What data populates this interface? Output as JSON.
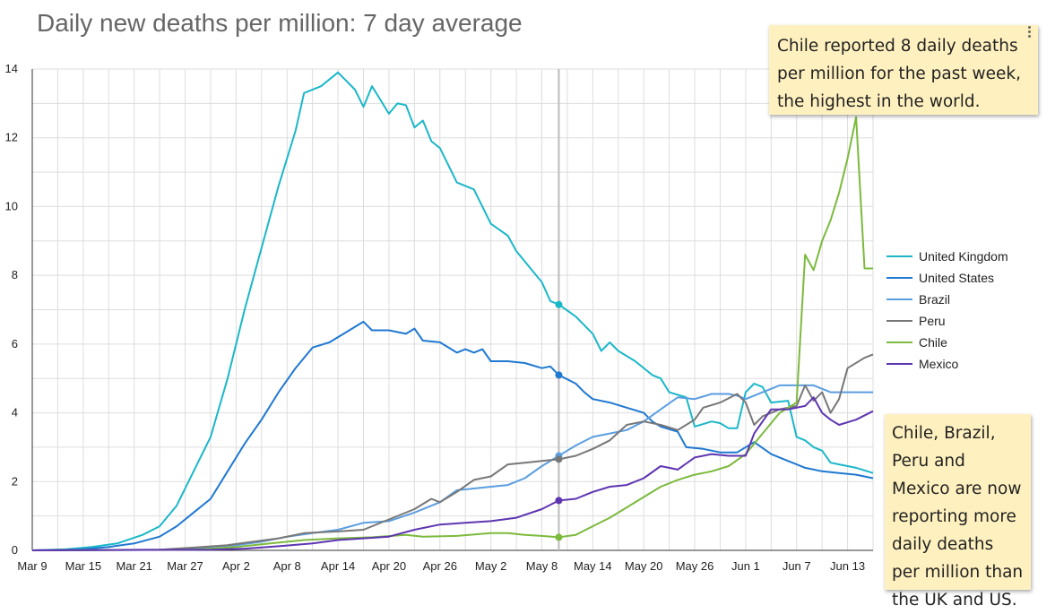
{
  "title": "Daily new deaths per million: 7 day average",
  "notes": {
    "top": "Chile reported 8 daily deaths per million for the past week, the highest in the world.",
    "bottom": "Chile, Brazil, Peru and Mexico are now reporting more daily deaths per million than the UK and US."
  },
  "chart_data": {
    "type": "line",
    "title": "Daily new deaths per million: 7 day average",
    "xlabel": "",
    "ylabel": "",
    "ylim": [
      0,
      14
    ],
    "y_ticks": [
      0,
      2,
      4,
      6,
      8,
      10,
      12,
      14
    ],
    "x_start": "Mar 9",
    "x_end": "Jun 16",
    "x_ticks": [
      "Mar 9",
      "Mar 15",
      "Mar 21",
      "Mar 27",
      "Apr 2",
      "Apr 8",
      "Apr 14",
      "Apr 20",
      "Apr 26",
      "May 2",
      "May 8",
      "May 14",
      "May 20",
      "May 26",
      "Jun 1",
      "Jun 7",
      "Jun 13"
    ],
    "grid": true,
    "legend_position": "right",
    "hover_date": "May 10",
    "series": [
      {
        "name": "United Kingdom",
        "color": "#1bb7c9",
        "points": [
          [
            "Mar 9",
            0
          ],
          [
            "Mar 13",
            0.03
          ],
          [
            "Mar 16",
            0.1
          ],
          [
            "Mar 19",
            0.2
          ],
          [
            "Mar 22",
            0.45
          ],
          [
            "Mar 24",
            0.7
          ],
          [
            "Mar 26",
            1.3
          ],
          [
            "Mar 28",
            2.3
          ],
          [
            "Mar 30",
            3.3
          ],
          [
            "Apr 1",
            5.0
          ],
          [
            "Apr 3",
            7.0
          ],
          [
            "Apr 5",
            8.8
          ],
          [
            "Apr 7",
            10.6
          ],
          [
            "Apr 9",
            12.2
          ],
          [
            "Apr 10",
            13.3
          ],
          [
            "Apr 12",
            13.5
          ],
          [
            "Apr 14",
            13.9
          ],
          [
            "Apr 16",
            13.4
          ],
          [
            "Apr 17",
            12.9
          ],
          [
            "Apr 18",
            13.5
          ],
          [
            "Apr 19",
            13.1
          ],
          [
            "Apr 20",
            12.7
          ],
          [
            "Apr 21",
            13.0
          ],
          [
            "Apr 22",
            12.95
          ],
          [
            "Apr 23",
            12.3
          ],
          [
            "Apr 24",
            12.5
          ],
          [
            "Apr 25",
            11.9
          ],
          [
            "Apr 26",
            11.7
          ],
          [
            "Apr 27",
            11.2
          ],
          [
            "Apr 28",
            10.7
          ],
          [
            "Apr 30",
            10.5
          ],
          [
            "May 2",
            9.5
          ],
          [
            "May 4",
            9.15
          ],
          [
            "May 5",
            8.7
          ],
          [
            "May 7",
            8.1
          ],
          [
            "May 8",
            7.8
          ],
          [
            "May 9",
            7.25
          ],
          [
            "May 10",
            7.15
          ],
          [
            "May 12",
            6.8
          ],
          [
            "May 14",
            6.3
          ],
          [
            "May 15",
            5.8
          ],
          [
            "May 16",
            6.05
          ],
          [
            "May 17",
            5.8
          ],
          [
            "May 19",
            5.5
          ],
          [
            "May 21",
            5.1
          ],
          [
            "May 22",
            5.0
          ],
          [
            "May 23",
            4.6
          ],
          [
            "May 25",
            4.45
          ],
          [
            "May 26",
            3.6
          ],
          [
            "May 28",
            3.75
          ],
          [
            "May 29",
            3.7
          ],
          [
            "May 30",
            3.55
          ],
          [
            "May 31",
            3.55
          ],
          [
            "Jun 1",
            4.6
          ],
          [
            "Jun 2",
            4.85
          ],
          [
            "Jun 3",
            4.75
          ],
          [
            "Jun 4",
            4.3
          ],
          [
            "Jun 6",
            4.35
          ],
          [
            "Jun 7",
            3.3
          ],
          [
            "Jun 8",
            3.2
          ],
          [
            "Jun 9",
            3.0
          ],
          [
            "Jun 10",
            2.9
          ],
          [
            "Jun 11",
            2.55
          ],
          [
            "Jun 12",
            2.5
          ],
          [
            "Jun 14",
            2.4
          ],
          [
            "Jun 16",
            2.25
          ]
        ]
      },
      {
        "name": "United States",
        "color": "#1f78d1",
        "points": [
          [
            "Mar 9",
            0
          ],
          [
            "Mar 15",
            0.03
          ],
          [
            "Mar 18",
            0.1
          ],
          [
            "Mar 21",
            0.2
          ],
          [
            "Mar 24",
            0.4
          ],
          [
            "Mar 26",
            0.7
          ],
          [
            "Mar 28",
            1.1
          ],
          [
            "Mar 30",
            1.5
          ],
          [
            "Apr 1",
            2.3
          ],
          [
            "Apr 3",
            3.1
          ],
          [
            "Apr 5",
            3.8
          ],
          [
            "Apr 7",
            4.6
          ],
          [
            "Apr 9",
            5.3
          ],
          [
            "Apr 11",
            5.9
          ],
          [
            "Apr 13",
            6.05
          ],
          [
            "Apr 15",
            6.35
          ],
          [
            "Apr 17",
            6.65
          ],
          [
            "Apr 18",
            6.4
          ],
          [
            "Apr 20",
            6.4
          ],
          [
            "Apr 22",
            6.3
          ],
          [
            "Apr 23",
            6.45
          ],
          [
            "Apr 24",
            6.1
          ],
          [
            "Apr 26",
            6.05
          ],
          [
            "Apr 28",
            5.75
          ],
          [
            "Apr 29",
            5.85
          ],
          [
            "Apr 30",
            5.75
          ],
          [
            "May 1",
            5.85
          ],
          [
            "May 2",
            5.5
          ],
          [
            "May 4",
            5.5
          ],
          [
            "May 6",
            5.45
          ],
          [
            "May 8",
            5.3
          ],
          [
            "May 9",
            5.35
          ],
          [
            "May 10",
            5.1
          ],
          [
            "May 12",
            4.85
          ],
          [
            "May 13",
            4.6
          ],
          [
            "May 14",
            4.4
          ],
          [
            "May 16",
            4.3
          ],
          [
            "May 18",
            4.15
          ],
          [
            "May 20",
            4.0
          ],
          [
            "May 21",
            3.75
          ],
          [
            "May 22",
            3.6
          ],
          [
            "May 24",
            3.45
          ],
          [
            "May 25",
            3.0
          ],
          [
            "May 27",
            2.95
          ],
          [
            "May 29",
            2.85
          ],
          [
            "May 31",
            2.85
          ],
          [
            "Jun 2",
            3.15
          ],
          [
            "Jun 4",
            2.8
          ],
          [
            "Jun 6",
            2.6
          ],
          [
            "Jun 8",
            2.4
          ],
          [
            "Jun 10",
            2.3
          ],
          [
            "Jun 12",
            2.25
          ],
          [
            "Jun 14",
            2.2
          ],
          [
            "Jun 16",
            2.1
          ]
        ]
      },
      {
        "name": "Brazil",
        "color": "#5b9ee0",
        "points": [
          [
            "Mar 9",
            0
          ],
          [
            "Mar 26",
            0.02
          ],
          [
            "Mar 30",
            0.1
          ],
          [
            "Apr 2",
            0.15
          ],
          [
            "Apr 5",
            0.25
          ],
          [
            "Apr 8",
            0.4
          ],
          [
            "Apr 11",
            0.5
          ],
          [
            "Apr 14",
            0.6
          ],
          [
            "Apr 17",
            0.8
          ],
          [
            "Apr 20",
            0.85
          ],
          [
            "Apr 23",
            1.1
          ],
          [
            "Apr 26",
            1.4
          ],
          [
            "Apr 28",
            1.75
          ],
          [
            "Apr 30",
            1.8
          ],
          [
            "May 2",
            1.85
          ],
          [
            "May 4",
            1.9
          ],
          [
            "May 6",
            2.1
          ],
          [
            "May 8",
            2.45
          ],
          [
            "May 10",
            2.75
          ],
          [
            "May 12",
            3.05
          ],
          [
            "May 14",
            3.3
          ],
          [
            "May 16",
            3.4
          ],
          [
            "May 18",
            3.5
          ],
          [
            "May 20",
            3.75
          ],
          [
            "May 22",
            4.1
          ],
          [
            "May 24",
            4.45
          ],
          [
            "May 26",
            4.4
          ],
          [
            "May 28",
            4.55
          ],
          [
            "May 30",
            4.55
          ],
          [
            "May 31",
            4.5
          ],
          [
            "Jun 1",
            4.4
          ],
          [
            "Jun 3",
            4.6
          ],
          [
            "Jun 5",
            4.8
          ],
          [
            "Jun 7",
            4.8
          ],
          [
            "Jun 9",
            4.8
          ],
          [
            "Jun 11",
            4.6
          ],
          [
            "Jun 13",
            4.6
          ],
          [
            "Jun 16",
            4.6
          ]
        ]
      },
      {
        "name": "Peru",
        "color": "#777777",
        "points": [
          [
            "Mar 9",
            0
          ],
          [
            "Mar 24",
            0.02
          ],
          [
            "Mar 28",
            0.08
          ],
          [
            "Apr 1",
            0.15
          ],
          [
            "Apr 4",
            0.25
          ],
          [
            "Apr 7",
            0.35
          ],
          [
            "Apr 10",
            0.5
          ],
          [
            "Apr 14",
            0.55
          ],
          [
            "Apr 17",
            0.6
          ],
          [
            "Apr 20",
            0.9
          ],
          [
            "Apr 23",
            1.2
          ],
          [
            "Apr 25",
            1.5
          ],
          [
            "Apr 26",
            1.4
          ],
          [
            "Apr 28",
            1.7
          ],
          [
            "Apr 30",
            2.05
          ],
          [
            "May 2",
            2.15
          ],
          [
            "May 4",
            2.5
          ],
          [
            "May 6",
            2.55
          ],
          [
            "May 8",
            2.6
          ],
          [
            "May 10",
            2.65
          ],
          [
            "May 12",
            2.75
          ],
          [
            "May 14",
            2.95
          ],
          [
            "May 16",
            3.2
          ],
          [
            "May 18",
            3.65
          ],
          [
            "May 20",
            3.75
          ],
          [
            "May 22",
            3.65
          ],
          [
            "May 24",
            3.5
          ],
          [
            "May 26",
            3.8
          ],
          [
            "May 27",
            4.15
          ],
          [
            "May 29",
            4.3
          ],
          [
            "May 31",
            4.55
          ],
          [
            "Jun 1",
            4.3
          ],
          [
            "Jun 2",
            3.65
          ],
          [
            "Jun 3",
            3.9
          ],
          [
            "Jun 5",
            4.1
          ],
          [
            "Jun 7",
            4.2
          ],
          [
            "Jun 8",
            4.8
          ],
          [
            "Jun 9",
            4.35
          ],
          [
            "Jun 10",
            4.6
          ],
          [
            "Jun 11",
            4.0
          ],
          [
            "Jun 12",
            4.4
          ],
          [
            "Jun 13",
            5.3
          ],
          [
            "Jun 15",
            5.6
          ],
          [
            "Jun 16",
            5.7
          ]
        ]
      },
      {
        "name": "Chile",
        "color": "#7cba3d",
        "points": [
          [
            "Mar 9",
            0
          ],
          [
            "Mar 28",
            0.02
          ],
          [
            "Apr 2",
            0.1
          ],
          [
            "Apr 6",
            0.2
          ],
          [
            "Apr 10",
            0.3
          ],
          [
            "Apr 14",
            0.35
          ],
          [
            "Apr 18",
            0.38
          ],
          [
            "Apr 22",
            0.45
          ],
          [
            "Apr 24",
            0.4
          ],
          [
            "Apr 28",
            0.42
          ],
          [
            "May 2",
            0.5
          ],
          [
            "May 4",
            0.5
          ],
          [
            "May 6",
            0.45
          ],
          [
            "May 8",
            0.42
          ],
          [
            "May 10",
            0.38
          ],
          [
            "May 12",
            0.45
          ],
          [
            "May 14",
            0.7
          ],
          [
            "May 16",
            0.95
          ],
          [
            "May 18",
            1.25
          ],
          [
            "May 20",
            1.55
          ],
          [
            "May 22",
            1.85
          ],
          [
            "May 24",
            2.05
          ],
          [
            "May 26",
            2.2
          ],
          [
            "May 28",
            2.3
          ],
          [
            "May 30",
            2.45
          ],
          [
            "Jun 1",
            2.8
          ],
          [
            "Jun 3",
            3.4
          ],
          [
            "Jun 5",
            4.0
          ],
          [
            "Jun 7",
            4.3
          ],
          [
            "Jun 8",
            8.6
          ],
          [
            "Jun 9",
            8.15
          ],
          [
            "Jun 10",
            9.0
          ],
          [
            "Jun 11",
            9.6
          ],
          [
            "Jun 12",
            10.4
          ],
          [
            "Jun 13",
            11.4
          ],
          [
            "Jun 14",
            12.6
          ],
          [
            "Jun 15",
            8.2
          ],
          [
            "Jun 16",
            8.2
          ]
        ]
      },
      {
        "name": "Mexico",
        "color": "#5e35b1",
        "points": [
          [
            "Mar 9",
            0
          ],
          [
            "Mar 30",
            0.02
          ],
          [
            "Apr 3",
            0.05
          ],
          [
            "Apr 7",
            0.12
          ],
          [
            "Apr 11",
            0.2
          ],
          [
            "Apr 14",
            0.3
          ],
          [
            "Apr 17",
            0.35
          ],
          [
            "Apr 20",
            0.4
          ],
          [
            "Apr 23",
            0.6
          ],
          [
            "Apr 26",
            0.75
          ],
          [
            "Apr 29",
            0.8
          ],
          [
            "May 2",
            0.85
          ],
          [
            "May 5",
            0.95
          ],
          [
            "May 8",
            1.2
          ],
          [
            "May 10",
            1.45
          ],
          [
            "May 12",
            1.5
          ],
          [
            "May 14",
            1.7
          ],
          [
            "May 16",
            1.85
          ],
          [
            "May 18",
            1.9
          ],
          [
            "May 20",
            2.1
          ],
          [
            "May 22",
            2.45
          ],
          [
            "May 24",
            2.35
          ],
          [
            "May 26",
            2.7
          ],
          [
            "May 28",
            2.8
          ],
          [
            "May 30",
            2.75
          ],
          [
            "Jun 1",
            2.75
          ],
          [
            "Jun 2",
            3.4
          ],
          [
            "Jun 4",
            4.1
          ],
          [
            "Jun 6",
            4.1
          ],
          [
            "Jun 8",
            4.2
          ],
          [
            "Jun 9",
            4.45
          ],
          [
            "Jun 10",
            4.0
          ],
          [
            "Jun 11",
            3.8
          ],
          [
            "Jun 12",
            3.65
          ],
          [
            "Jun 14",
            3.8
          ],
          [
            "Jun 16",
            4.05
          ]
        ]
      }
    ]
  }
}
